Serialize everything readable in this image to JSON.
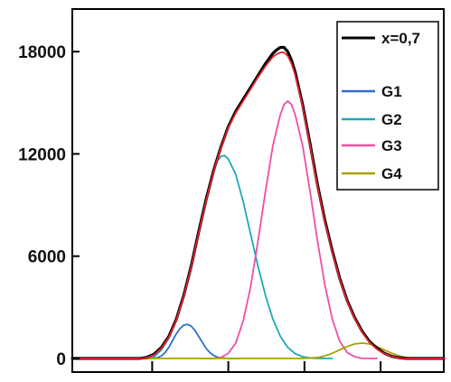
{
  "chart_data": {
    "type": "line",
    "title": "",
    "xlabel": "",
    "ylabel": "",
    "ylim": [
      -800,
      20500
    ],
    "xlim": [
      0,
      100
    ],
    "x_tick_positions": [
      21.5,
      42.0,
      62.5,
      83.0
    ],
    "y_ticks": [
      {
        "value": 0,
        "label": "0"
      },
      {
        "value": 6000,
        "label": "6000"
      },
      {
        "value": 12000,
        "label": "12000"
      },
      {
        "value": 18000,
        "label": "18000"
      }
    ],
    "legend": {
      "placement": "top-right",
      "entries": [
        {
          "label": "x=0,7",
          "color": "#000000"
        },
        {
          "label": "G1",
          "color": "#2d6fce"
        },
        {
          "label": "G2",
          "color": "#1fa8b8"
        },
        {
          "label": "G3",
          "color": "#ef4fa6"
        },
        {
          "label": "G4",
          "color": "#a8a000"
        }
      ]
    },
    "series": [
      {
        "key": "G1",
        "color": "#2d6fce",
        "values": [
          [
            15,
            0
          ],
          [
            17,
            0
          ],
          [
            19,
            0
          ],
          [
            21,
            0
          ],
          [
            22,
            20
          ],
          [
            23,
            50
          ],
          [
            24,
            150
          ],
          [
            25,
            350
          ],
          [
            26,
            650
          ],
          [
            27,
            1050
          ],
          [
            28,
            1450
          ],
          [
            29,
            1750
          ],
          [
            30,
            1950
          ],
          [
            31,
            2000
          ],
          [
            32,
            1900
          ],
          [
            33,
            1650
          ],
          [
            34,
            1300
          ],
          [
            35,
            950
          ],
          [
            36,
            600
          ],
          [
            37,
            350
          ],
          [
            38,
            180
          ],
          [
            39,
            80
          ],
          [
            40,
            30
          ],
          [
            42,
            0
          ],
          [
            45,
            0
          ]
        ]
      },
      {
        "key": "G2",
        "color": "#1fa8b8",
        "values": [
          [
            15,
            0
          ],
          [
            18,
            0
          ],
          [
            20,
            0
          ],
          [
            22,
            100
          ],
          [
            24,
            500
          ],
          [
            26,
            1200
          ],
          [
            28,
            2300
          ],
          [
            30,
            3800
          ],
          [
            32,
            5600
          ],
          [
            34,
            7600
          ],
          [
            36,
            9500
          ],
          [
            38,
            11000
          ],
          [
            39,
            11600
          ],
          [
            40,
            11850
          ],
          [
            41,
            11900
          ],
          [
            42,
            11700
          ],
          [
            44,
            10800
          ],
          [
            46,
            9200
          ],
          [
            48,
            7300
          ],
          [
            50,
            5400
          ],
          [
            52,
            3700
          ],
          [
            54,
            2300
          ],
          [
            56,
            1300
          ],
          [
            58,
            650
          ],
          [
            60,
            280
          ],
          [
            62,
            100
          ],
          [
            64,
            30
          ],
          [
            66,
            0
          ],
          [
            70,
            0
          ]
        ]
      },
      {
        "key": "G3",
        "color": "#ef4fa6",
        "values": [
          [
            35,
            0
          ],
          [
            38,
            0
          ],
          [
            40,
            50
          ],
          [
            42,
            300
          ],
          [
            44,
            900
          ],
          [
            46,
            2200
          ],
          [
            48,
            4200
          ],
          [
            50,
            6900
          ],
          [
            52,
            9800
          ],
          [
            54,
            12500
          ],
          [
            56,
            14300
          ],
          [
            57,
            14900
          ],
          [
            58,
            15100
          ],
          [
            59,
            14900
          ],
          [
            60,
            14300
          ],
          [
            62,
            12500
          ],
          [
            64,
            9800
          ],
          [
            66,
            6900
          ],
          [
            68,
            4300
          ],
          [
            70,
            2300
          ],
          [
            72,
            1000
          ],
          [
            74,
            350
          ],
          [
            76,
            100
          ],
          [
            78,
            0
          ],
          [
            82,
            0
          ]
        ]
      },
      {
        "key": "G4",
        "color": "#a8a000",
        "values": [
          [
            0,
            0
          ],
          [
            55,
            0
          ],
          [
            62,
            0
          ],
          [
            66,
            50
          ],
          [
            68,
            150
          ],
          [
            70,
            300
          ],
          [
            72,
            500
          ],
          [
            74,
            700
          ],
          [
            76,
            850
          ],
          [
            78,
            900
          ],
          [
            80,
            850
          ],
          [
            82,
            700
          ],
          [
            84,
            500
          ],
          [
            86,
            300
          ],
          [
            88,
            150
          ],
          [
            90,
            50
          ],
          [
            92,
            0
          ],
          [
            100,
            0
          ]
        ]
      },
      {
        "key": "x=0,7",
        "color": "#000000",
        "values": [
          [
            0,
            0
          ],
          [
            10,
            0
          ],
          [
            18,
            0
          ],
          [
            20,
            60
          ],
          [
            22,
            250
          ],
          [
            24,
            650
          ],
          [
            26,
            1300
          ],
          [
            28,
            2300
          ],
          [
            30,
            3700
          ],
          [
            32,
            5400
          ],
          [
            34,
            7400
          ],
          [
            36,
            9300
          ],
          [
            38,
            11000
          ],
          [
            40,
            12400
          ],
          [
            42,
            13600
          ],
          [
            44,
            14500
          ],
          [
            46,
            15200
          ],
          [
            48,
            15900
          ],
          [
            50,
            16600
          ],
          [
            52,
            17300
          ],
          [
            54,
            17900
          ],
          [
            55,
            18100
          ],
          [
            56,
            18250
          ],
          [
            57,
            18250
          ],
          [
            58,
            18000
          ],
          [
            59,
            17500
          ],
          [
            60,
            16800
          ],
          [
            62,
            14900
          ],
          [
            64,
            12600
          ],
          [
            66,
            10200
          ],
          [
            68,
            8100
          ],
          [
            70,
            6300
          ],
          [
            72,
            4700
          ],
          [
            74,
            3400
          ],
          [
            76,
            2400
          ],
          [
            78,
            1600
          ],
          [
            80,
            1000
          ],
          [
            82,
            600
          ],
          [
            84,
            300
          ],
          [
            86,
            120
          ],
          [
            88,
            40
          ],
          [
            90,
            0
          ],
          [
            100,
            0
          ]
        ]
      },
      {
        "key": "fit",
        "color": "#e8202a",
        "values": [
          [
            0,
            0
          ],
          [
            10,
            0
          ],
          [
            18,
            0
          ],
          [
            20,
            40
          ],
          [
            22,
            200
          ],
          [
            24,
            600
          ],
          [
            26,
            1250
          ],
          [
            28,
            2250
          ],
          [
            30,
            3650
          ],
          [
            32,
            5350
          ],
          [
            34,
            7350
          ],
          [
            36,
            9250
          ],
          [
            38,
            10950
          ],
          [
            40,
            12350
          ],
          [
            42,
            13550
          ],
          [
            44,
            14400
          ],
          [
            46,
            15100
          ],
          [
            48,
            15800
          ],
          [
            50,
            16500
          ],
          [
            52,
            17150
          ],
          [
            54,
            17700
          ],
          [
            55,
            17850
          ],
          [
            56,
            17950
          ],
          [
            57,
            17950
          ],
          [
            58,
            17750
          ],
          [
            59,
            17300
          ],
          [
            60,
            16650
          ],
          [
            62,
            14800
          ],
          [
            64,
            12500
          ],
          [
            66,
            10100
          ],
          [
            68,
            8000
          ],
          [
            70,
            6200
          ],
          [
            72,
            4650
          ],
          [
            74,
            3350
          ],
          [
            76,
            2350
          ],
          [
            78,
            1550
          ],
          [
            80,
            950
          ],
          [
            82,
            550
          ],
          [
            84,
            280
          ],
          [
            86,
            110
          ],
          [
            88,
            30
          ],
          [
            90,
            0
          ],
          [
            100,
            0
          ]
        ]
      }
    ]
  }
}
